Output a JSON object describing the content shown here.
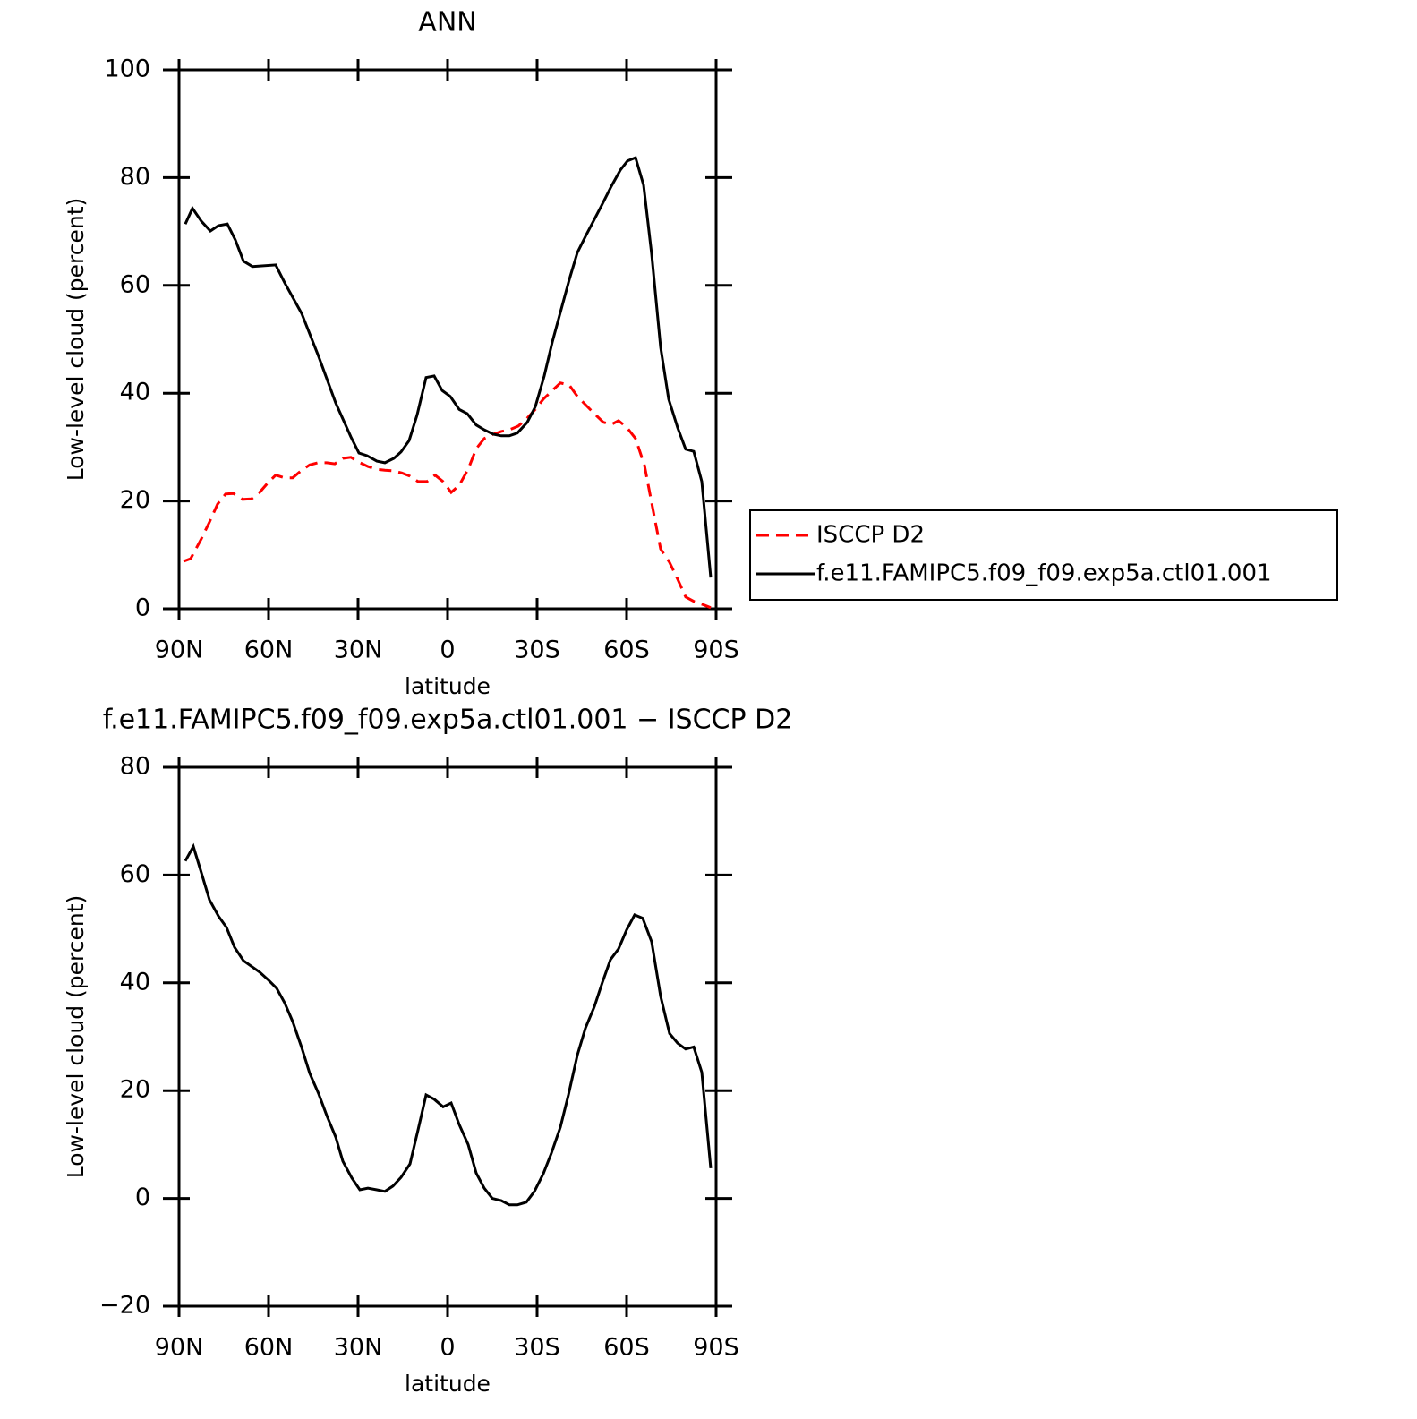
{
  "chart_data": [
    {
      "type": "line",
      "title": "ANN",
      "xlabel": "latitude",
      "ylabel": "Low-level cloud (percent)",
      "xlim": [
        90,
        -90
      ],
      "ylim": [
        0,
        100
      ],
      "xticks": [
        {
          "value": 90,
          "label": "90N"
        },
        {
          "value": 60,
          "label": "60N"
        },
        {
          "value": 30,
          "label": "30N"
        },
        0,
        {
          "value": -30,
          "label": "30S"
        },
        {
          "value": -60,
          "label": "60S"
        },
        {
          "value": -90,
          "label": "90S"
        }
      ],
      "yticks": [
        0,
        20,
        40,
        60,
        80,
        100
      ],
      "legend": "outside-right",
      "series": [
        {
          "name": "ISCCP D2",
          "color": "#ff0000",
          "linestyle": "dashed",
          "x": [
            88.5,
            86.1,
            82.5,
            79.8,
            77.1,
            74.4,
            71.7,
            68.7,
            65.7,
            63,
            60.3,
            57.6,
            54.6,
            51.9,
            48.9,
            46.2,
            43.5,
            40.5,
            37.8,
            35.1,
            32.4,
            29.7,
            26.7,
            24,
            21,
            18.3,
            15.3,
            12.6,
            9.9,
            6.9,
            4.2,
            1.5,
            -1.2,
            -3.9,
            -6.9,
            -9.6,
            -12.3,
            -15.3,
            -18,
            -20.7,
            -23.7,
            -26.4,
            -29.4,
            -32.1,
            -35.1,
            -37.8,
            -40.8,
            -43.5,
            -46.5,
            -49.2,
            -52.2,
            -54.9,
            -57.3,
            -60,
            -63,
            -66,
            -68.7,
            -71.4,
            -74.4,
            -77.1,
            -79.8,
            -82.8,
            -85.5,
            -88.2
          ],
          "values": [
            8.8,
            9.3,
            13,
            16.1,
            19.4,
            21.3,
            21.4,
            20.3,
            20.4,
            21.6,
            23.3,
            24.8,
            24.3,
            24.3,
            25.7,
            26.7,
            27.1,
            27.1,
            26.9,
            27.9,
            28.1,
            27.2,
            26.4,
            25.9,
            25.7,
            25.6,
            25.2,
            24.6,
            23.6,
            23.6,
            24.8,
            23.6,
            21.6,
            22.9,
            25.9,
            29.7,
            31.6,
            32.4,
            32.9,
            33.2,
            33.9,
            35.2,
            37,
            38.9,
            40.5,
            41.9,
            41.5,
            39.4,
            37.7,
            36.2,
            34.6,
            34.2,
            34.9,
            33.7,
            31.6,
            26.6,
            18.8,
            11.1,
            8.6,
            5.5,
            2.2,
            1.3,
            0.8,
            0.2
          ]
        },
        {
          "name": "f.e11.FAMIPC5.f09_f09.exp5a.ctl01.001",
          "color": "#000000",
          "linestyle": "solid",
          "x": [
            87.9,
            85.5,
            82.5,
            79.5,
            76.8,
            73.8,
            71.1,
            68.4,
            65.4,
            57.6,
            54.6,
            48.9,
            43.2,
            37.5,
            32.4,
            29.7,
            27,
            23.7,
            21,
            18,
            15.6,
            12.9,
            10.2,
            7.2,
            4.5,
            1.8,
            -0.9,
            -3.9,
            -6.6,
            -9.6,
            -12.3,
            -15.3,
            -18,
            -20.7,
            -23.4,
            -26.7,
            -29.4,
            -32.4,
            -35.1,
            -40.8,
            -43.5,
            -46.5,
            -51.6,
            -54.9,
            -57.9,
            -60.3,
            -63,
            -65.7,
            -68.4,
            -71.4,
            -74.1,
            -77.1,
            -79.8,
            -82.5,
            -85.2,
            -88.2
          ],
          "values": [
            71.4,
            74.3,
            71.9,
            70.1,
            71.1,
            71.4,
            68.4,
            64.5,
            63.5,
            63.8,
            60.5,
            54.8,
            46.8,
            38.2,
            31.9,
            28.9,
            28.4,
            27.4,
            27.1,
            27.9,
            29.1,
            31.2,
            36,
            42.9,
            43.2,
            40.5,
            39.4,
            37,
            36.2,
            34.1,
            33.2,
            32.4,
            32.1,
            32.1,
            32.6,
            34.6,
            37.5,
            43.2,
            49.5,
            61.1,
            66.1,
            69.4,
            74.8,
            78.4,
            81.4,
            83.1,
            83.7,
            78.6,
            65.8,
            48.5,
            38.9,
            33.6,
            29.6,
            29.2,
            23.6,
            5.8
          ]
        }
      ]
    },
    {
      "type": "line",
      "title": "f.e11.FAMIPC5.f09_f09.exp5a.ctl01.001 − ISCCP D2",
      "xlabel": "latitude",
      "ylabel": "Low-level cloud (percent)",
      "xlim": [
        90,
        -90
      ],
      "ylim": [
        -20,
        80
      ],
      "xticks": [
        {
          "value": 90,
          "label": "90N"
        },
        {
          "value": 60,
          "label": "60N"
        },
        {
          "value": 30,
          "label": "30N"
        },
        0,
        {
          "value": -30,
          "label": "30S"
        },
        {
          "value": -60,
          "label": "60S"
        },
        {
          "value": -90,
          "label": "90S"
        }
      ],
      "yticks": [
        {
          "value": -20,
          "label": "−20"
        },
        0,
        20,
        40,
        60,
        80
      ],
      "color": "#000000",
      "x": [
        87.9,
        85.2,
        82.5,
        79.8,
        76.8,
        74.1,
        71.4,
        68.4,
        63,
        60,
        57.3,
        54.6,
        51.9,
        48.9,
        46.2,
        43.2,
        40.5,
        37.5,
        35.1,
        32.1,
        29.4,
        26.7,
        23.7,
        21,
        18.3,
        15.6,
        12.6,
        9.9,
        7.2,
        4.5,
        1.5,
        -1.2,
        -3.9,
        -6.9,
        -9.6,
        -12.3,
        -15,
        -18,
        -20.7,
        -23.4,
        -26.4,
        -29.1,
        -32.1,
        -34.8,
        -37.8,
        -40.5,
        -43.5,
        -46.2,
        -49.2,
        -51.9,
        -54.6,
        -57.3,
        -60,
        -62.7,
        -65.4,
        -68.4,
        -71.4,
        -74.4,
        -77.1,
        -79.8,
        -82.5,
        -85.2,
        -88.2
      ],
      "values": [
        62.6,
        65.3,
        60.4,
        55.4,
        52.4,
        50.3,
        46.6,
        44.1,
        42,
        40.5,
        39,
        36.3,
        32.8,
        28,
        23.2,
        19.4,
        15.4,
        11.4,
        6.9,
        3.8,
        1.6,
        1.9,
        1.6,
        1.3,
        2.3,
        3.9,
        6.4,
        12.7,
        19.2,
        18.4,
        17,
        17.7,
        13.7,
        10,
        4.7,
        1.9,
        0,
        -0.4,
        -1.2,
        -1.2,
        -0.7,
        1.3,
        4.6,
        8.4,
        13.2,
        19.2,
        26.6,
        31.6,
        35.6,
        40.1,
        44.3,
        46.3,
        49.8,
        52.6,
        52,
        47.6,
        37.5,
        30.6,
        28.8,
        27.7,
        28.1,
        23.4,
        5.6
      ]
    }
  ]
}
